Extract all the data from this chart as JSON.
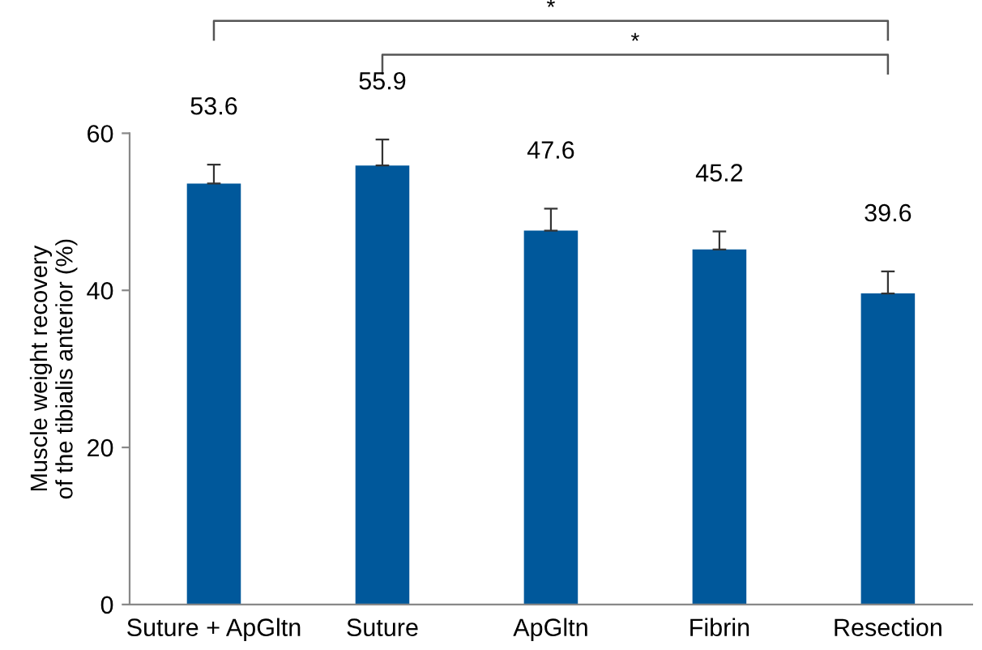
{
  "chart_data": {
    "type": "bar",
    "ylabel": "Muscle weight recovery\nof the tibialis anterior (%)",
    "categories": [
      "Suture + ApGltn",
      "Suture",
      "ApGltn",
      "Fibrin",
      "Resection"
    ],
    "values": [
      53.6,
      55.9,
      47.6,
      45.2,
      39.6
    ],
    "errors": [
      2.4,
      3.3,
      2.8,
      2.3,
      2.8
    ],
    "color": "#00589b",
    "ylim": [
      0,
      60
    ],
    "yticks": [
      0,
      20,
      40,
      60
    ],
    "data_labels": true,
    "grid": false,
    "annotations": [
      "*",
      "*"
    ]
  }
}
